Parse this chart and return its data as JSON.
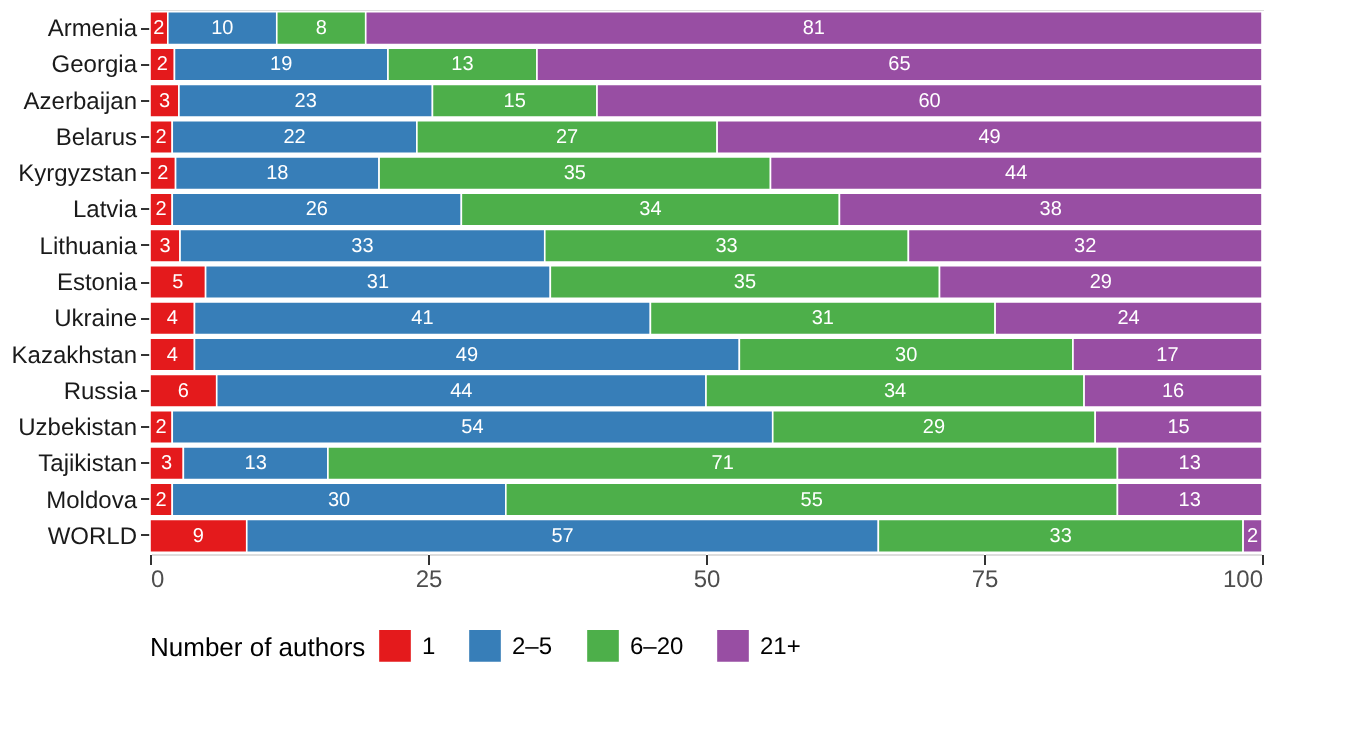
{
  "chart_data": {
    "type": "bar",
    "orientation": "horizontal",
    "stacked": true,
    "categories": [
      "Armenia",
      "Georgia",
      "Azerbaijan",
      "Belarus",
      "Kyrgyzstan",
      "Latvia",
      "Lithuania",
      "Estonia",
      "Ukraine",
      "Kazakhstan",
      "Russia",
      "Uzbekistan",
      "Tajikistan",
      "Moldova",
      "WORLD"
    ],
    "series": [
      {
        "name": "1",
        "color": "#e41a1c",
        "values": [
          1.6,
          2.2,
          2.6,
          2,
          2.3,
          2,
          2.7,
          5,
          4,
          4,
          6,
          2,
          3,
          2,
          8.7
        ],
        "value_labels": [
          "2",
          "2",
          "3",
          "2",
          "2",
          "2",
          "3",
          "5",
          "4",
          "4",
          "6",
          "2",
          "3",
          "2",
          "9"
        ]
      },
      {
        "name": "2–5",
        "color": "#377eb8",
        "values": [
          9.8,
          19.2,
          22.8,
          22,
          18.3,
          26,
          32.8,
          31,
          41,
          49,
          44,
          54,
          13,
          30,
          56.8
        ],
        "value_labels": [
          "10",
          "19",
          "23",
          "22",
          "18",
          "26",
          "33",
          "31",
          "41",
          "49",
          "44",
          "54",
          "13",
          "30",
          "57"
        ]
      },
      {
        "name": "6–20",
        "color": "#4daf4a",
        "values": [
          8,
          13.4,
          14.8,
          27,
          35.2,
          34,
          32.7,
          35,
          31,
          30,
          34,
          29,
          71,
          55,
          32.8
        ],
        "value_labels": [
          "8",
          "13",
          "15",
          "27",
          "35",
          "34",
          "33",
          "35",
          "31",
          "30",
          "34",
          "29",
          "71",
          "55",
          "33"
        ]
      },
      {
        "name": "21+",
        "color": "#984ea3",
        "values": [
          80.6,
          65.2,
          59.8,
          49,
          44.2,
          38,
          31.8,
          29,
          24,
          17,
          16,
          15,
          13,
          13,
          1.7
        ],
        "value_labels": [
          "81",
          "65",
          "60",
          "49",
          "44",
          "38",
          "32",
          "29",
          "24",
          "17",
          "16",
          "15",
          "13",
          "13",
          "2"
        ]
      }
    ],
    "xlim": [
      0,
      100
    ],
    "xticks": [
      0,
      25,
      50,
      75,
      100
    ],
    "grid": true,
    "legend": "bottom",
    "legend_title": "Number of authors"
  }
}
